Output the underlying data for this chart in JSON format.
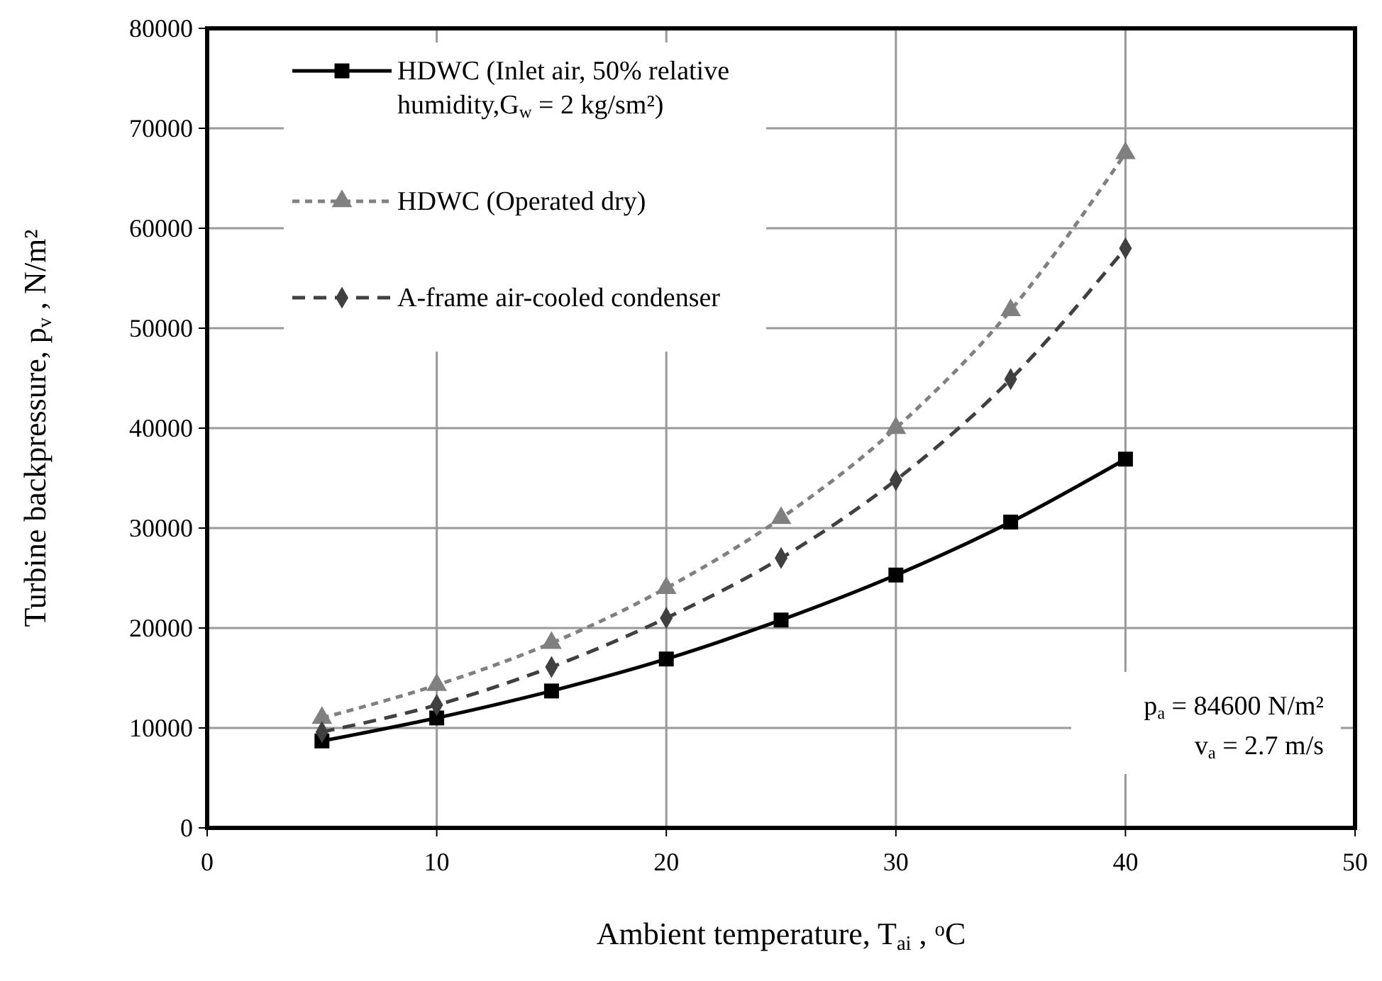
{
  "chart_data": {
    "type": "line",
    "xlabel": "Ambient temperature, T$_{ai}$ , $^{o}$C",
    "ylabel": "Turbine backpressure, p$_{v}$ , N/m²",
    "x": [
      5,
      10,
      15,
      20,
      25,
      30,
      35,
      40
    ],
    "xlim": [
      0,
      50
    ],
    "xticks": [
      0,
      10,
      20,
      30,
      40,
      50
    ],
    "ylim": [
      0,
      80000
    ],
    "yticks": [
      0,
      10000,
      20000,
      30000,
      40000,
      50000,
      60000,
      70000,
      80000
    ],
    "grid": true,
    "legend": "top left",
    "series": [
      {
        "name": "HDWC (Inlet air, 50% relative humidity,G$_{w}$ = 2 kg/sm²)",
        "color": "#000000",
        "marker": "square",
        "line_style": "solid",
        "values": [
          8700,
          11000,
          13700,
          16900,
          20800,
          25300,
          30600,
          36900
        ]
      },
      {
        "name": "HDWC (Operated dry)",
        "color": "#808080",
        "marker": "triangle",
        "line_style": "dotted",
        "values": [
          11000,
          14300,
          18500,
          24000,
          31000,
          40000,
          51800,
          67500
        ]
      },
      {
        "name": "A-frame air-cooled condenser",
        "color": "#404040",
        "marker": "diamond",
        "line_style": "dashed",
        "values": [
          9600,
          12300,
          16100,
          21000,
          27000,
          34800,
          44900,
          58000
        ]
      }
    ],
    "annotations": [
      "p$_{a}$ = 84600 N/m²",
      "v$_{a}$ = 2.7 m/s"
    ]
  }
}
